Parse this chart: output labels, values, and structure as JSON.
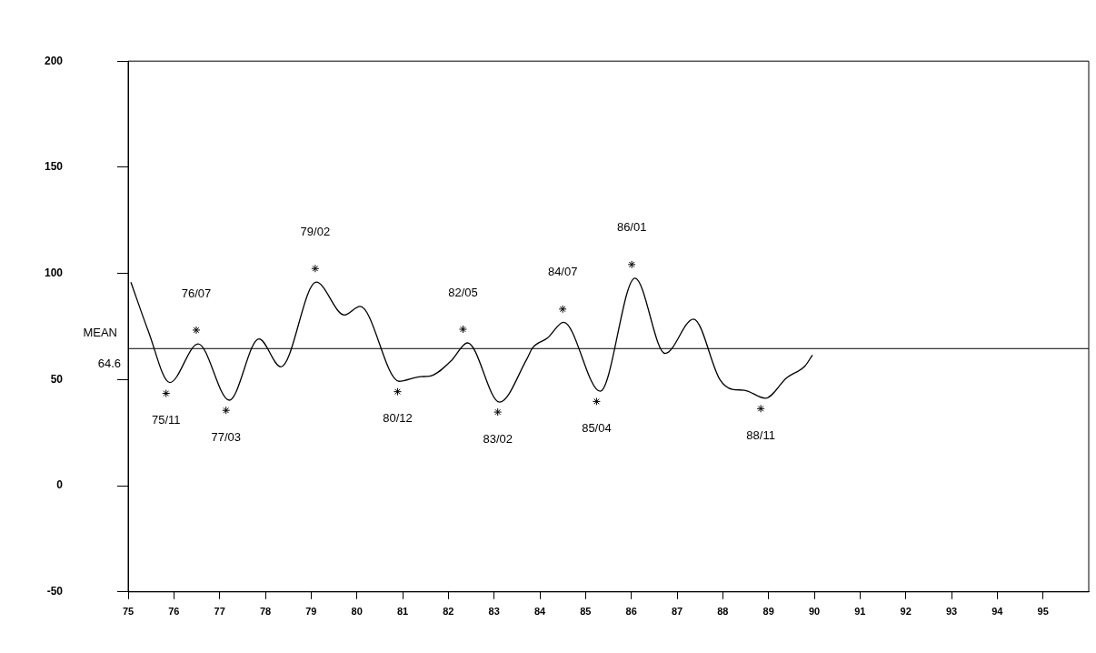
{
  "chart_data": {
    "type": "line",
    "xlim": [
      75,
      96
    ],
    "xticks": [
      75,
      76,
      77,
      78,
      79,
      80,
      81,
      82,
      83,
      84,
      85,
      86,
      87,
      88,
      89,
      90,
      91,
      92,
      93,
      94,
      95
    ],
    "ylim": [
      -50,
      200
    ],
    "yticks": [
      -50,
      0,
      50,
      100,
      150,
      200
    ],
    "grid": false,
    "legend": false,
    "series": [
      {
        "color": "#000000",
        "marker": "none",
        "x": [
          75.06,
          75.44,
          75.91,
          76.53,
          77.21,
          77.86,
          78.34,
          79.11,
          79.73,
          80.07,
          80.92,
          81.4,
          81.59,
          82.06,
          82.42,
          83.12,
          83.71,
          83.84,
          84.17,
          84.52,
          85.32,
          86.08,
          86.74,
          87.36,
          87.94,
          88.21,
          88.47,
          88.93,
          89.4,
          89.8,
          89.96
        ],
        "values": [
          95.9,
          72.9,
          48.6,
          66.8,
          40.3,
          69.2,
          56.0,
          95.9,
          80.4,
          84.5,
          49.2,
          51.4,
          51.6,
          58.8,
          67.3,
          39.4,
          59.4,
          64.9,
          69.6,
          77.0,
          44.5,
          97.8,
          62.3,
          78.5,
          49.9,
          45.4,
          45.0,
          41.2,
          50.9,
          56.5,
          61.6
        ]
      },
      {
        "type": "scatter",
        "color": "#000000",
        "marker": "cross",
        "x": [
          75.83,
          76.49,
          77.14,
          79.09,
          80.89,
          82.32,
          83.08,
          84.5,
          85.24,
          86.01,
          88.83
        ],
        "values": [
          43.5,
          73.3,
          35.5,
          102.3,
          44.3,
          73.7,
          34.7,
          83.2,
          39.7,
          104.2,
          36.3
        ]
      }
    ],
    "ref_lines": [
      {
        "axis": "y",
        "value": 64.6,
        "label": "MEAN\n64.6"
      }
    ],
    "annotations": [
      {
        "text": "75/11",
        "x": 75.83,
        "y": 43.5
      },
      {
        "text": "76/07",
        "x": 76.49,
        "y": 73.3
      },
      {
        "text": "77/03",
        "x": 77.14,
        "y": 35.5
      },
      {
        "text": "79/02",
        "x": 79.09,
        "y": 102.3
      },
      {
        "text": "80/12",
        "x": 80.89,
        "y": 44.3
      },
      {
        "text": "82/05",
        "x": 82.32,
        "y": 73.7
      },
      {
        "text": "83/02",
        "x": 83.08,
        "y": 34.7
      },
      {
        "text": "84/07",
        "x": 84.5,
        "y": 83.2
      },
      {
        "text": "85/04",
        "x": 85.24,
        "y": 39.7
      },
      {
        "text": "86/01",
        "x": 86.01,
        "y": 104.2
      },
      {
        "text": "88/11",
        "x": 88.83,
        "y": 36.3
      }
    ]
  }
}
